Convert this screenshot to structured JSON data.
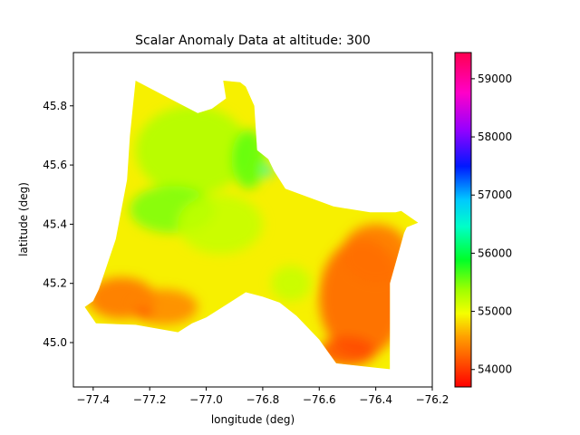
{
  "chart_data": {
    "type": "heatmap",
    "title": "Scalar Anomaly Data at altitude: 300",
    "xlabel": "longitude (deg)",
    "ylabel": "latitude (deg)",
    "xlim": [
      -77.47,
      -76.2
    ],
    "ylim": [
      44.85,
      45.98
    ],
    "x_ticks": [
      -77.4,
      -77.2,
      -77.0,
      -76.8,
      -76.6,
      -76.4,
      -76.2
    ],
    "x_tick_labels": [
      "−77.4",
      "−77.2",
      "−77.0",
      "−76.8",
      "−76.6",
      "−76.4",
      "−76.2"
    ],
    "y_ticks": [
      45.0,
      45.2,
      45.4,
      45.6,
      45.8
    ],
    "y_tick_labels": [
      "45.0",
      "45.2",
      "45.4",
      "45.6",
      "45.8"
    ],
    "colorbar": {
      "colormap": "gist_rainbow",
      "range": [
        53700,
        59450
      ],
      "ticks": [
        54000,
        55000,
        56000,
        57000,
        58000,
        59000
      ],
      "tick_labels": [
        "54000",
        "55000",
        "56000",
        "57000",
        "58000",
        "59000"
      ]
    },
    "survey_outline": [
      [
        -77.25,
        45.885
      ],
      [
        -77.09,
        45.805
      ],
      [
        -77.03,
        45.775
      ],
      [
        -76.98,
        45.79
      ],
      [
        -76.93,
        45.825
      ],
      [
        -76.94,
        45.885
      ],
      [
        -76.88,
        45.88
      ],
      [
        -76.86,
        45.865
      ],
      [
        -76.83,
        45.8
      ],
      [
        -76.82,
        45.65
      ],
      [
        -76.78,
        45.62
      ],
      [
        -76.76,
        45.58
      ],
      [
        -76.72,
        45.52
      ],
      [
        -76.55,
        45.46
      ],
      [
        -76.42,
        45.44
      ],
      [
        -76.33,
        45.44
      ],
      [
        -76.31,
        45.445
      ],
      [
        -76.25,
        45.405
      ],
      [
        -76.29,
        45.39
      ],
      [
        -76.3,
        45.37
      ],
      [
        -76.35,
        45.2
      ],
      [
        -76.35,
        44.91
      ],
      [
        -76.4,
        44.915
      ],
      [
        -76.54,
        44.93
      ],
      [
        -76.6,
        45.01
      ],
      [
        -76.68,
        45.09
      ],
      [
        -76.74,
        45.135
      ],
      [
        -76.8,
        45.155
      ],
      [
        -76.86,
        45.17
      ],
      [
        -77.0,
        45.085
      ],
      [
        -77.05,
        45.065
      ],
      [
        -77.1,
        45.035
      ],
      [
        -77.25,
        45.06
      ],
      [
        -77.39,
        45.065
      ],
      [
        -77.43,
        45.12
      ],
      [
        -77.4,
        45.14
      ],
      [
        -77.38,
        45.18
      ],
      [
        -77.32,
        45.35
      ],
      [
        -77.28,
        45.55
      ],
      [
        -77.27,
        45.7
      ],
      [
        -77.25,
        45.885
      ]
    ],
    "anomaly_field": {
      "background_value": 54900,
      "regions": [
        {
          "lon": -77.05,
          "lat": 45.65,
          "value": 55300,
          "spread_lon": 0.2,
          "spread_lat": 0.15
        },
        {
          "lon": -77.12,
          "lat": 45.45,
          "value": 55500,
          "spread_lon": 0.15,
          "spread_lat": 0.08
        },
        {
          "lon": -76.95,
          "lat": 45.4,
          "value": 55200,
          "spread_lon": 0.15,
          "spread_lat": 0.1
        },
        {
          "lon": -76.85,
          "lat": 45.62,
          "value": 55600,
          "spread_lon": 0.06,
          "spread_lat": 0.1
        },
        {
          "lon": -76.45,
          "lat": 45.15,
          "value": 54200,
          "spread_lon": 0.15,
          "spread_lat": 0.2
        },
        {
          "lon": -76.4,
          "lat": 45.3,
          "value": 54300,
          "spread_lon": 0.12,
          "spread_lat": 0.1
        },
        {
          "lon": -77.3,
          "lat": 45.15,
          "value": 54300,
          "spread_lon": 0.12,
          "spread_lat": 0.07
        },
        {
          "lon": -77.15,
          "lat": 45.12,
          "value": 54400,
          "spread_lon": 0.12,
          "spread_lat": 0.06
        },
        {
          "lon": -76.7,
          "lat": 45.2,
          "value": 55200,
          "spread_lon": 0.07,
          "spread_lat": 0.06
        },
        {
          "lon": -76.5,
          "lat": 44.97,
          "value": 54100,
          "spread_lon": 0.1,
          "spread_lat": 0.05
        },
        {
          "lon": -76.78,
          "lat": 45.58,
          "value": 56500,
          "spread_lon": 0.015,
          "spread_lat": 0.02
        },
        {
          "lon": -77.22,
          "lat": 45.1,
          "value": 53900,
          "spread_lon": 0.03,
          "spread_lat": 0.01
        }
      ]
    }
  }
}
